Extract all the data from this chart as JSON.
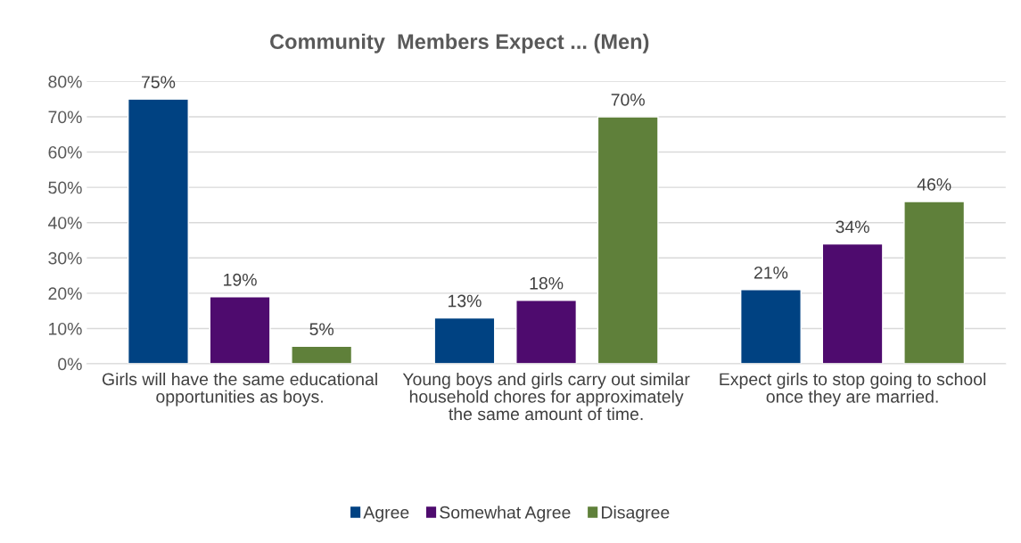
{
  "chart_data": {
    "type": "bar",
    "title": "Community  Members Expect ... (Men)",
    "categories": [
      "Girls will have the same educational opportunities as boys.",
      "Young boys and girls carry out similar household chores for approximately the same amount of time.",
      "Expect girls to stop going to school once they are married."
    ],
    "series": [
      {
        "name": "Agree",
        "color": "#004282",
        "values": [
          75,
          13,
          21
        ],
        "value_labels": [
          "75%",
          "13%",
          "21%"
        ]
      },
      {
        "name": "Somewhat Agree",
        "color": "#4e0b6e",
        "values": [
          19,
          18,
          34
        ],
        "value_labels": [
          "19%",
          "18%",
          "34%"
        ]
      },
      {
        "name": "Disagree",
        "color": "#5f803a",
        "values": [
          5,
          70,
          46
        ],
        "value_labels": [
          "5%",
          "70%",
          "46%"
        ]
      }
    ],
    "ylim": [
      0,
      80
    ],
    "yticks": [
      {
        "value": 0,
        "label": "0%"
      },
      {
        "value": 10,
        "label": "10%"
      },
      {
        "value": 20,
        "label": "20%"
      },
      {
        "value": 30,
        "label": "30%"
      },
      {
        "value": 40,
        "label": "40%"
      },
      {
        "value": 50,
        "label": "50%"
      },
      {
        "value": 60,
        "label": "60%"
      },
      {
        "value": 70,
        "label": "70%"
      },
      {
        "value": 80,
        "label": "80%"
      }
    ],
    "grid": "y",
    "legend": "bottom"
  }
}
